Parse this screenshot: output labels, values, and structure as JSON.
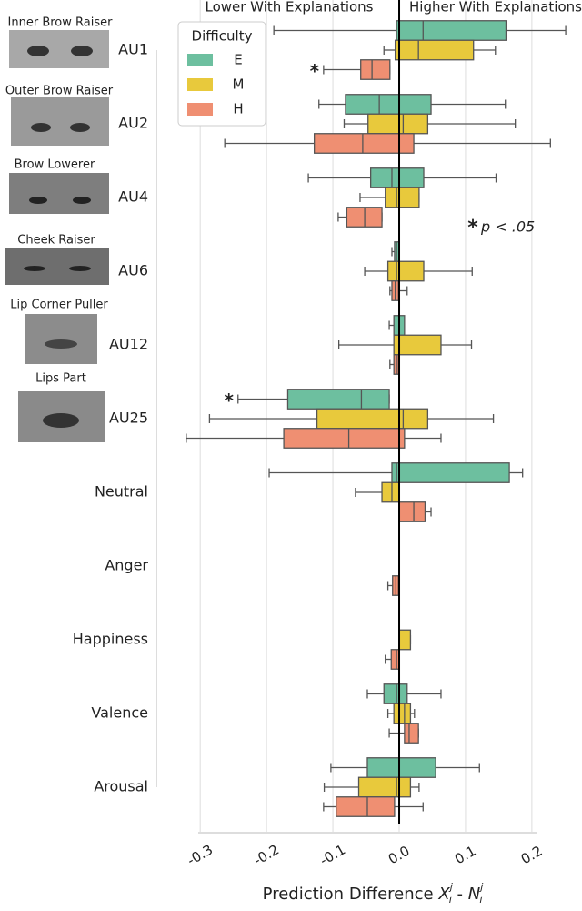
{
  "chart_data": {
    "type": "boxplot_horizontal",
    "annotations": {
      "left": "Lower With Explanations",
      "right": "Higher With Explanations"
    },
    "categories": [
      "AU1",
      "AU2",
      "AU4",
      "AU6",
      "AU12",
      "AU25",
      "Neutral",
      "Anger",
      "Happiness",
      "Valence",
      "Arousal"
    ],
    "category_descriptions": [
      "Inner Brow Raiser",
      "Outer Brow Raiser",
      "Brow Lowerer",
      "Cheek Raiser",
      "Lip Corner Puller",
      "Lips Part"
    ],
    "legend_title": "Difficulty",
    "series": [
      {
        "name": "E",
        "color": "#6dbf9f",
        "boxes": [
          {
            "whislo": -0.189,
            "q1": -0.004,
            "med": 0.036,
            "q3": 0.161,
            "whishi": 0.251
          },
          {
            "whislo": -0.121,
            "q1": -0.081,
            "med": -0.03,
            "q3": 0.048,
            "whishi": 0.16
          },
          {
            "whislo": -0.137,
            "q1": -0.043,
            "med": -0.011,
            "q3": 0.037,
            "whishi": 0.146
          },
          {
            "whislo": -0.011,
            "q1": -0.007,
            "med": -0.004,
            "q3": 0.0,
            "whishi": 0.0
          },
          {
            "whislo": -0.015,
            "q1": -0.008,
            "med": 0.0,
            "q3": 0.008,
            "whishi": 0.008
          },
          {
            "whislo": -0.243,
            "q1": -0.168,
            "med": -0.057,
            "q3": -0.015,
            "whishi": -0.015
          },
          {
            "whislo": -0.196,
            "q1": -0.011,
            "med": -0.004,
            "q3": 0.166,
            "whishi": 0.186
          },
          {
            "whislo": 0,
            "q1": 0,
            "med": 0,
            "q3": 0,
            "whishi": 0
          },
          {
            "whislo": 0,
            "q1": 0,
            "med": 0,
            "q3": 0,
            "whishi": 0
          },
          {
            "whislo": -0.048,
            "q1": -0.023,
            "med": -0.004,
            "q3": 0.012,
            "whishi": 0.063
          },
          {
            "whislo": -0.103,
            "q1": -0.048,
            "med": 0.0,
            "q3": 0.055,
            "whishi": 0.121
          }
        ]
      },
      {
        "name": "M",
        "color": "#e8c93c",
        "boxes": [
          {
            "whislo": -0.023,
            "q1": -0.006,
            "med": 0.029,
            "q3": 0.112,
            "whishi": 0.145
          },
          {
            "whislo": -0.083,
            "q1": -0.047,
            "med": 0.006,
            "q3": 0.043,
            "whishi": 0.175
          },
          {
            "whislo": -0.059,
            "q1": -0.021,
            "med": -0.004,
            "q3": 0.03,
            "whishi": 0.03
          },
          {
            "whislo": -0.052,
            "q1": -0.017,
            "med": -0.004,
            "q3": 0.037,
            "whishi": 0.11
          },
          {
            "whislo": -0.091,
            "q1": -0.008,
            "med": 0.0,
            "q3": 0.063,
            "whishi": 0.109
          },
          {
            "whislo": -0.286,
            "q1": -0.124,
            "med": 0.006,
            "q3": 0.043,
            "whishi": 0.142
          },
          {
            "whislo": -0.066,
            "q1": -0.026,
            "med": -0.011,
            "q3": 0.0,
            "whishi": 0.0
          },
          {
            "whislo": 0,
            "q1": 0,
            "med": 0,
            "q3": 0,
            "whishi": 0
          },
          {
            "whislo": 0.0,
            "q1": 0.0,
            "med": 0.0,
            "q3": 0.017,
            "whishi": 0.017
          },
          {
            "whislo": -0.017,
            "q1": -0.008,
            "med": 0.008,
            "q3": 0.017,
            "whishi": 0.023
          },
          {
            "whislo": -0.113,
            "q1": -0.061,
            "med": -0.004,
            "q3": 0.017,
            "whishi": 0.03
          }
        ]
      },
      {
        "name": "H",
        "color": "#ef8f72",
        "boxes": [
          {
            "whislo": -0.114,
            "q1": -0.058,
            "med": -0.041,
            "q3": -0.014,
            "whishi": -0.014
          },
          {
            "whislo": -0.263,
            "q1": -0.128,
            "med": -0.055,
            "q3": 0.022,
            "whishi": 0.228
          },
          {
            "whislo": -0.092,
            "q1": -0.079,
            "med": -0.052,
            "q3": -0.026,
            "whishi": -0.026
          },
          {
            "whislo": -0.014,
            "q1": -0.011,
            "med": -0.006,
            "q3": -0.001,
            "whishi": 0.012
          },
          {
            "whislo": -0.014,
            "q1": -0.008,
            "med": -0.004,
            "q3": -0.001,
            "whishi": -0.001
          },
          {
            "whislo": -0.321,
            "q1": -0.174,
            "med": -0.076,
            "q3": 0.008,
            "whishi": 0.063
          },
          {
            "whislo": 0.0,
            "q1": 0.0,
            "med": 0.022,
            "q3": 0.039,
            "whishi": 0.048
          },
          {
            "whislo": -0.017,
            "q1": -0.01,
            "med": -0.005,
            "q3": -0.001,
            "whishi": -0.001
          },
          {
            "whislo": -0.021,
            "q1": -0.012,
            "med": -0.004,
            "q3": 0.0,
            "whishi": 0.0
          },
          {
            "whislo": -0.015,
            "q1": 0.008,
            "med": 0.015,
            "q3": 0.029,
            "whishi": 0.029
          },
          {
            "whislo": -0.114,
            "q1": -0.095,
            "med": -0.048,
            "q3": -0.007,
            "whishi": 0.036
          }
        ]
      }
    ],
    "significance": [
      {
        "category": 0,
        "series": 2,
        "label": "*"
      },
      {
        "category": 5,
        "series": 0,
        "label": "*"
      }
    ],
    "significance_key": {
      "symbol": "*",
      "text": "p < .05"
    },
    "xlabel": {
      "text": "Prediction Difference",
      "x_sym": "X",
      "n_sym": "N",
      "sub": "i",
      "sup": "j",
      "minus": "-"
    },
    "xlim": [
      -0.303,
      0.207
    ],
    "xticks": [
      -0.3,
      -0.2,
      -0.1,
      {
        "value": 0,
        "label": "0.0"
      },
      0.1,
      0.2
    ],
    "grid": true
  }
}
